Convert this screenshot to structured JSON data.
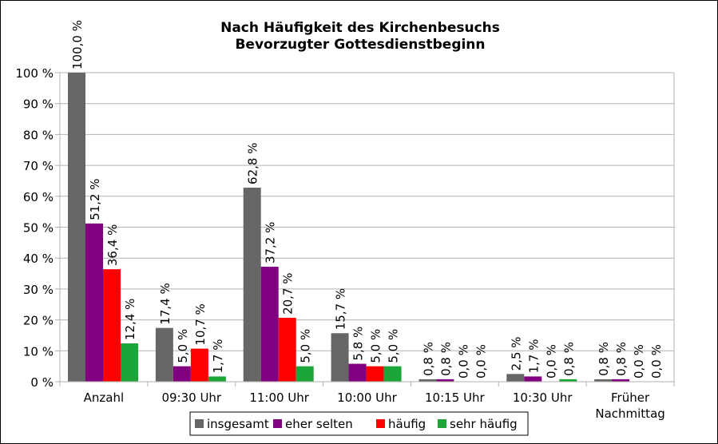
{
  "chart_data": {
    "type": "bar",
    "title": [
      "Nach Häufigkeit des Kirchenbesuchs",
      "Bevorzugter Gottesdienstbeginn"
    ],
    "categories": [
      "Anzahl",
      "09:30 Uhr",
      "11:00 Uhr",
      "10:00 Uhr",
      "10:15 Uhr",
      "10:30 Uhr",
      "Früher Nachmittag"
    ],
    "series": [
      {
        "name": "insgesamt",
        "color": "#666666",
        "values": [
          100.0,
          17.4,
          62.8,
          15.7,
          0.8,
          2.5,
          0.8
        ]
      },
      {
        "name": "eher selten",
        "color": "#800080",
        "values": [
          51.2,
          5.0,
          37.2,
          5.8,
          0.8,
          1.7,
          0.8
        ]
      },
      {
        "name": "häufig",
        "color": "#ff0000",
        "values": [
          36.4,
          10.7,
          20.7,
          5.0,
          0.0,
          0.0,
          0.0
        ]
      },
      {
        "name": "sehr häufig",
        "color": "#1ca63a",
        "values": [
          12.4,
          1.7,
          5.0,
          5.0,
          0.0,
          0.8,
          0.0
        ]
      }
    ],
    "ylim": [
      0,
      100
    ],
    "yticks": [
      "0 %",
      "10 %",
      "20 %",
      "30 %",
      "40 %",
      "50 %",
      "60 %",
      "70 %",
      "80 %",
      "90 %",
      "100 %"
    ],
    "grid": true,
    "legend": "bottom",
    "xlabel": "",
    "ylabel": ""
  }
}
